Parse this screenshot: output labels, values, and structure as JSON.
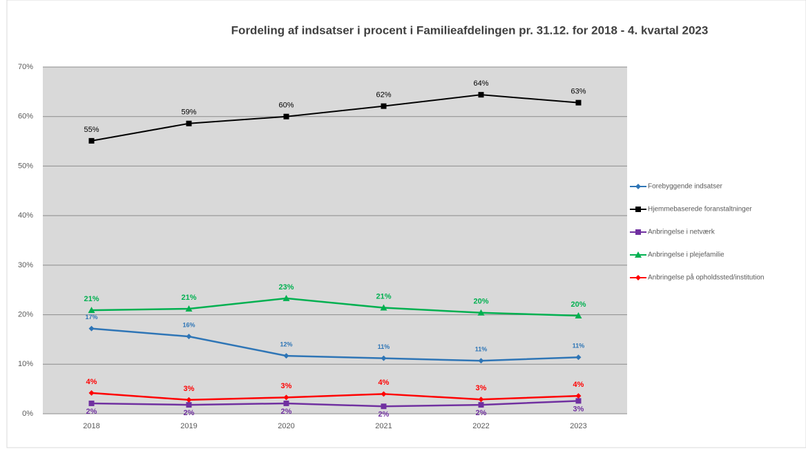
{
  "chart_data": {
    "type": "line",
    "title": "Fordeling af indsatser i procent i Familieafdelingen pr. 31.12. for 2018 - 4. kvartal 2023",
    "categories": [
      "2018",
      "2019",
      "2020",
      "2021",
      "2022",
      "2023"
    ],
    "ylim": [
      0,
      70
    ],
    "yticks": [
      {
        "value": 0,
        "label": "0%"
      },
      {
        "value": 10,
        "label": "10%"
      },
      {
        "value": 20,
        "label": "20%"
      },
      {
        "value": 30,
        "label": "30%"
      },
      {
        "value": 40,
        "label": "40%"
      },
      {
        "value": 50,
        "label": "50%"
      },
      {
        "value": 60,
        "label": "60%"
      },
      {
        "value": 70,
        "label": "70%"
      }
    ],
    "grid": true,
    "legend": "right",
    "series": [
      {
        "name": "Forebyggende indsatser",
        "color": "#2e75b6",
        "marker": "diamond",
        "label_position": "above",
        "values": [
          17.2,
          15.6,
          11.7,
          11.2,
          10.7,
          11.4
        ],
        "value_labels": [
          "17%",
          "16%",
          "12%",
          "11%",
          "11%",
          "11%"
        ]
      },
      {
        "name": "Hjemmebaserede foranstaltninger",
        "color": "#000000",
        "marker": "square",
        "label_position": "above",
        "values": [
          55.1,
          58.6,
          60.0,
          62.1,
          64.4,
          62.8
        ],
        "value_labels": [
          "55%",
          "59%",
          "60%",
          "62%",
          "64%",
          "63%"
        ]
      },
      {
        "name": "Anbringelse i netværk",
        "color": "#7030a0",
        "marker": "square",
        "label_position": "below",
        "values": [
          2.1,
          1.8,
          2.1,
          1.5,
          1.8,
          2.6
        ],
        "value_labels": [
          "2%",
          "2%",
          "2%",
          "2%",
          "2%",
          "3%"
        ]
      },
      {
        "name": "Anbringelse i plejefamilie",
        "color": "#00b050",
        "marker": "triangle",
        "label_position": "above",
        "values": [
          20.9,
          21.2,
          23.3,
          21.4,
          20.4,
          19.8
        ],
        "value_labels": [
          "21%",
          "21%",
          "23%",
          "21%",
          "20%",
          "20%"
        ]
      },
      {
        "name": "Anbringelse på opholdssted/institution",
        "color": "#ff0000",
        "marker": "diamond",
        "label_position": "above",
        "values": [
          4.2,
          2.8,
          3.3,
          4.0,
          2.9,
          3.6
        ],
        "value_labels": [
          "4%",
          "3%",
          "3%",
          "4%",
          "3%",
          "4%"
        ]
      }
    ]
  }
}
